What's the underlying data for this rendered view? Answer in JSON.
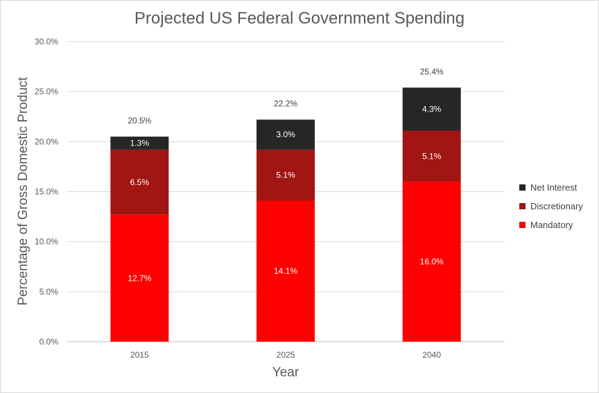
{
  "chart_data": {
    "type": "bar",
    "stacked": true,
    "title": "Projected US Federal Government Spending",
    "xlabel": "Year",
    "ylabel": "Percentage of Gross Domestic Product",
    "ylim": [
      0,
      30
    ],
    "yticks": [
      "0.0%",
      "5.0%",
      "10.0%",
      "15.0%",
      "20.0%",
      "25.0%",
      "30.0%"
    ],
    "grid": true,
    "legend_position": "right",
    "categories": [
      "2015",
      "2025",
      "2040"
    ],
    "series": [
      {
        "name": "Mandatory",
        "color": "#ff0000",
        "values": [
          12.7,
          14.1,
          16.0
        ],
        "labels": [
          "12.7%",
          "14.1%",
          "16.0%"
        ]
      },
      {
        "name": "Discretionary",
        "color": "#a11512",
        "values": [
          6.5,
          5.1,
          5.1
        ],
        "labels": [
          "6.5%",
          "5.1%",
          "5.1%"
        ]
      },
      {
        "name": "Net Interest",
        "color": "#262626",
        "values": [
          1.3,
          3.0,
          4.3
        ],
        "labels": [
          "1.3%",
          "3.0%",
          "4.3%"
        ]
      }
    ],
    "totals": [
      20.5,
      22.2,
      25.4
    ],
    "total_labels": [
      "20.5%",
      "22.2%",
      "25.4%"
    ]
  }
}
